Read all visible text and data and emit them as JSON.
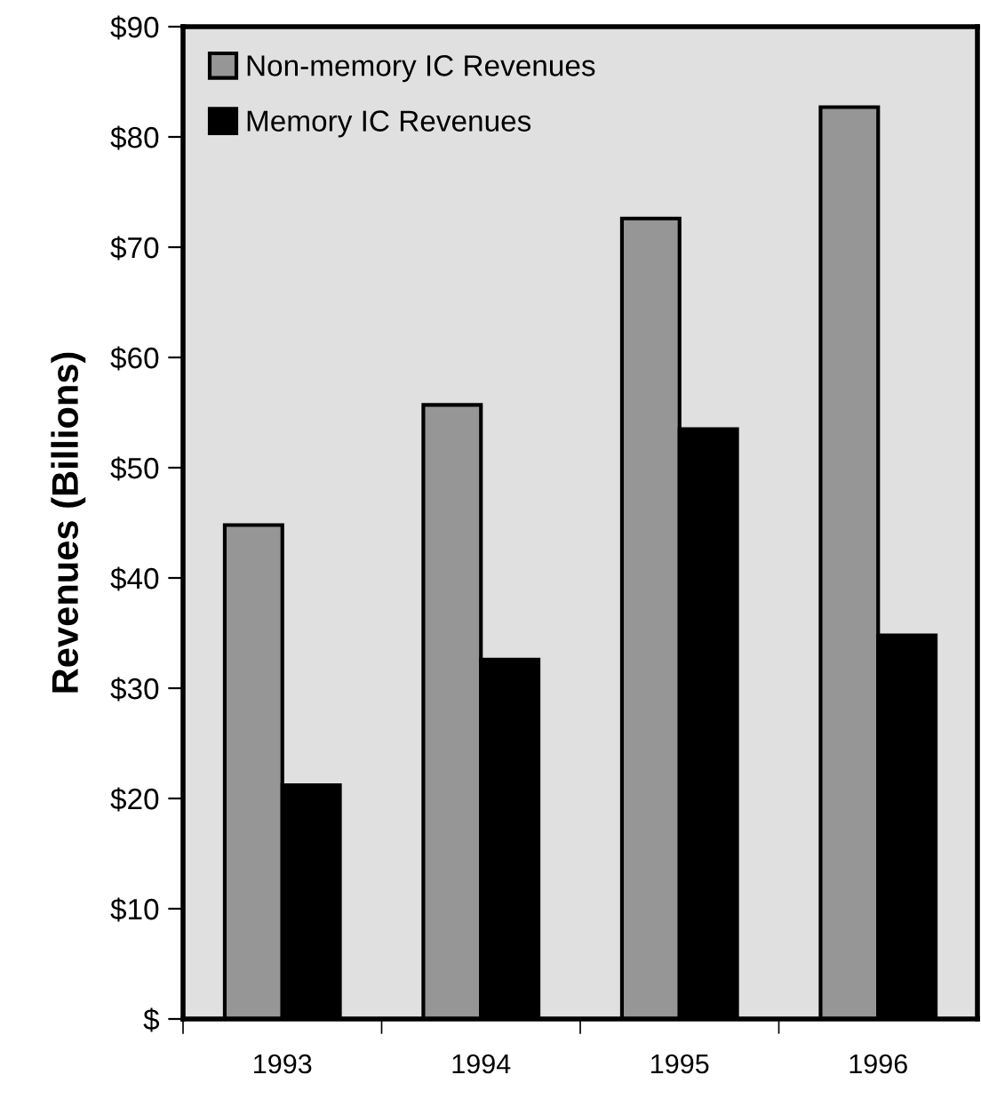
{
  "chart_data": {
    "type": "bar",
    "ylabel": "Revenues (Billions)",
    "categories": [
      "1993",
      "1994",
      "1995",
      "1996"
    ],
    "series": [
      {
        "name": "Non-memory IC Revenues",
        "color": "#969696",
        "values": [
          44.8,
          55.7,
          72.6,
          82.7
        ]
      },
      {
        "name": "Memory IC Revenues",
        "color": "#000000",
        "values": [
          21.2,
          32.6,
          53.5,
          34.8
        ]
      }
    ],
    "ylim": [
      0,
      90
    ],
    "yticks": [
      {
        "value": 0,
        "label": "$"
      },
      {
        "value": 10,
        "label": "$10"
      },
      {
        "value": 20,
        "label": "$20"
      },
      {
        "value": 30,
        "label": "$30"
      },
      {
        "value": 40,
        "label": "$40"
      },
      {
        "value": 50,
        "label": "$50"
      },
      {
        "value": 60,
        "label": "$60"
      },
      {
        "value": 70,
        "label": "$70"
      },
      {
        "value": 80,
        "label": "$80"
      },
      {
        "value": 90,
        "label": "$90"
      }
    ],
    "grid": false,
    "legend": "top left"
  }
}
